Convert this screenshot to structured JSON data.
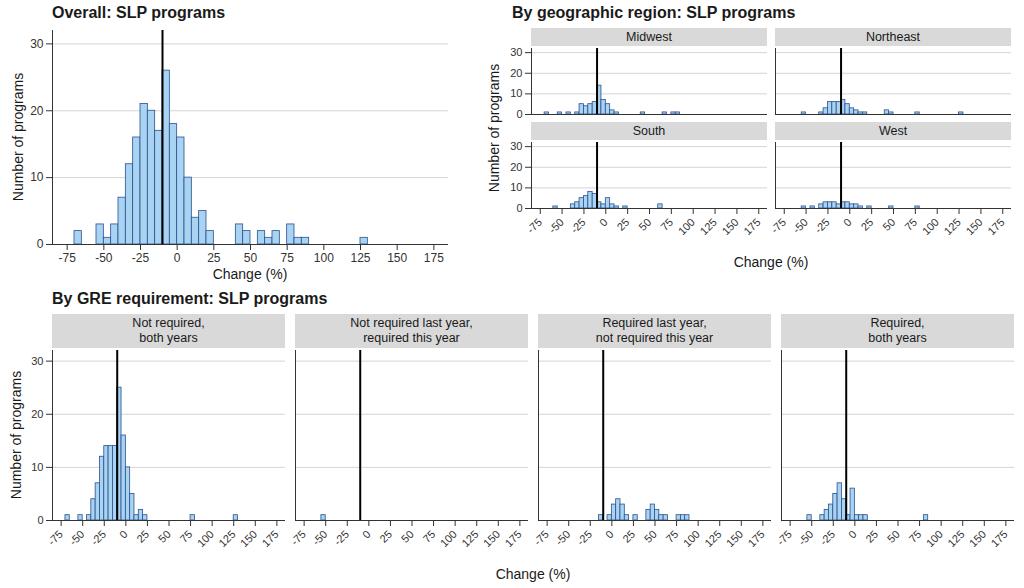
{
  "chart_data": [
    {
      "type": "histogram",
      "title": "Overall: SLP programs",
      "x_label": "Change (%)",
      "y_label": "Number of programs",
      "bins": [
        -70,
        -65,
        -60,
        -55,
        -50,
        -45,
        -40,
        -35,
        -30,
        -25,
        -20,
        -15,
        -10,
        -5,
        0,
        5,
        10,
        15,
        20,
        25,
        30,
        35,
        40,
        45,
        50,
        55,
        60,
        65,
        70,
        75,
        80,
        85,
        90,
        95,
        100,
        105,
        110,
        115,
        120,
        125,
        130,
        135,
        140,
        145,
        150,
        155,
        160,
        165,
        170
      ],
      "values": [
        2,
        0,
        0,
        3,
        1,
        3,
        7,
        12,
        16,
        21,
        20,
        17,
        26,
        18,
        16,
        10,
        4,
        5,
        2,
        0,
        0,
        0,
        3,
        2,
        0,
        2,
        1,
        2,
        0,
        3,
        1,
        1,
        0,
        0,
        0,
        0,
        0,
        0,
        0,
        1,
        0,
        0,
        0,
        0,
        0,
        0,
        0,
        0
      ],
      "reference_line": -10,
      "color": "#a8d4f2",
      "xlim": [
        -85,
        185
      ],
      "xticks": [
        -75,
        -50,
        -25,
        0,
        25,
        50,
        75,
        100,
        125,
        150,
        175
      ],
      "ylim": [
        0,
        32
      ],
      "yticks": [
        0,
        10,
        20,
        30
      ],
      "grid": true
    },
    {
      "type": "histogram",
      "title": "By geographic region: SLP programs",
      "x_label": "Change (%)",
      "y_label": "Number of programs",
      "bins": [
        -70,
        -65,
        -60,
        -55,
        -50,
        -45,
        -40,
        -35,
        -30,
        -25,
        -20,
        -15,
        -10,
        -5,
        0,
        5,
        10,
        15,
        20,
        25,
        30,
        35,
        40,
        45,
        50,
        55,
        60,
        65,
        70,
        75,
        80,
        85,
        90,
        95,
        100,
        105,
        110,
        115,
        120,
        125,
        130,
        135,
        140,
        145,
        150,
        155,
        160,
        165,
        170
      ],
      "series": [
        {
          "name": "Midwest",
          "values": [
            1,
            0,
            0,
            1,
            0,
            1,
            0,
            1,
            5,
            4,
            5,
            6,
            14,
            7,
            5,
            2,
            1,
            0,
            0,
            0,
            0,
            0,
            1,
            0,
            0,
            0,
            0,
            1,
            0,
            1,
            1,
            0,
            0,
            0,
            0,
            0,
            0,
            0,
            0,
            0,
            0,
            0,
            0,
            0,
            0,
            0,
            0,
            0
          ]
        },
        {
          "name": "Northeast",
          "values": [
            0,
            0,
            0,
            1,
            0,
            0,
            0,
            1,
            3,
            6,
            6,
            6,
            7,
            5,
            3,
            2,
            1,
            1,
            0,
            0,
            0,
            0,
            2,
            1,
            0,
            0,
            0,
            0,
            0,
            1,
            0,
            0,
            0,
            0,
            0,
            0,
            0,
            0,
            0,
            1,
            0,
            0,
            0,
            0,
            0,
            0,
            0,
            0
          ]
        },
        {
          "name": "South",
          "values": [
            0,
            0,
            1,
            0,
            0,
            0,
            2,
            3,
            5,
            6,
            8,
            7,
            3,
            2,
            5,
            2,
            1,
            0,
            1,
            0,
            0,
            0,
            0,
            0,
            0,
            0,
            2,
            0,
            0,
            0,
            0,
            0,
            0,
            0,
            0,
            0,
            0,
            0,
            0,
            0,
            0,
            0,
            0,
            0,
            0,
            0,
            0,
            0
          ]
        },
        {
          "name": "West",
          "values": [
            0,
            0,
            0,
            1,
            0,
            1,
            0,
            2,
            3,
            3,
            3,
            2,
            3,
            3,
            2,
            2,
            1,
            0,
            1,
            0,
            0,
            0,
            0,
            1,
            0,
            0,
            0,
            0,
            0,
            1,
            0,
            0,
            0,
            0,
            0,
            0,
            0,
            0,
            0,
            0,
            0,
            0,
            0,
            0,
            0,
            0,
            0,
            0
          ]
        }
      ],
      "reference_line": -10,
      "color": "#a8d4f2",
      "xlim": [
        -85,
        185
      ],
      "xticks": [
        -75,
        -50,
        -25,
        0,
        25,
        50,
        75,
        100,
        125,
        150,
        175
      ],
      "ylim": [
        0,
        32
      ],
      "yticks": [
        0,
        10,
        20,
        30
      ],
      "grid": true
    },
    {
      "type": "histogram",
      "title": "By GRE requirement: SLP programs",
      "x_label": "Change (%)",
      "y_label": "Number of programs",
      "bins": [
        -70,
        -65,
        -60,
        -55,
        -50,
        -45,
        -40,
        -35,
        -30,
        -25,
        -20,
        -15,
        -10,
        -5,
        0,
        5,
        10,
        15,
        20,
        25,
        30,
        35,
        40,
        45,
        50,
        55,
        60,
        65,
        70,
        75,
        80,
        85,
        90,
        95,
        100,
        105,
        110,
        115,
        120,
        125,
        130,
        135,
        140,
        145,
        150,
        155,
        160,
        165,
        170
      ],
      "series": [
        {
          "name": "Not required,\nboth years",
          "values": [
            1,
            0,
            0,
            1,
            0,
            1,
            4,
            7,
            12,
            14,
            14,
            14,
            25,
            16,
            10,
            5,
            1,
            2,
            1,
            0,
            0,
            0,
            0,
            0,
            0,
            0,
            0,
            0,
            0,
            1,
            0,
            0,
            0,
            0,
            0,
            0,
            0,
            0,
            0,
            1,
            0,
            0,
            0,
            0,
            0,
            0,
            0,
            0
          ]
        },
        {
          "name": "Not required last year,\nrequired this year",
          "values": [
            0,
            0,
            0,
            1,
            0,
            0,
            0,
            0,
            0,
            0,
            0,
            0,
            0,
            0,
            0,
            0,
            0,
            0,
            0,
            0,
            0,
            0,
            0,
            0,
            0,
            0,
            0,
            0,
            0,
            0,
            0,
            0,
            0,
            0,
            0,
            0,
            0,
            0,
            0,
            0,
            0,
            0,
            0,
            0,
            0,
            0,
            0,
            0
          ]
        },
        {
          "name": "Required last year,\nnot required this year",
          "values": [
            0,
            0,
            0,
            0,
            0,
            0,
            0,
            0,
            0,
            0,
            0,
            1,
            0,
            1,
            3,
            4,
            3,
            1,
            0,
            1,
            0,
            0,
            2,
            3,
            2,
            1,
            1,
            0,
            0,
            1,
            1,
            1,
            0,
            0,
            0,
            0,
            0,
            0,
            0,
            0,
            0,
            0,
            0,
            0,
            0,
            0,
            0,
            0
          ]
        },
        {
          "name": "Required,\nboth years",
          "values": [
            0,
            0,
            0,
            1,
            0,
            0,
            1,
            2,
            3,
            5,
            7,
            4,
            1,
            6,
            1,
            1,
            1,
            0,
            0,
            0,
            0,
            0,
            0,
            0,
            0,
            0,
            0,
            0,
            0,
            0,
            1,
            0,
            0,
            0,
            0,
            0,
            0,
            0,
            0,
            0,
            0,
            0,
            0,
            0,
            0,
            0,
            0,
            0
          ]
        }
      ],
      "reference_line": -10,
      "color": "#a8d4f2",
      "xlim": [
        -85,
        185
      ],
      "xticks": [
        -75,
        -50,
        -25,
        0,
        25,
        50,
        75,
        100,
        125,
        150,
        175
      ],
      "ylim": [
        0,
        32
      ],
      "yticks": [
        0,
        10,
        20,
        30
      ],
      "grid": true
    }
  ]
}
